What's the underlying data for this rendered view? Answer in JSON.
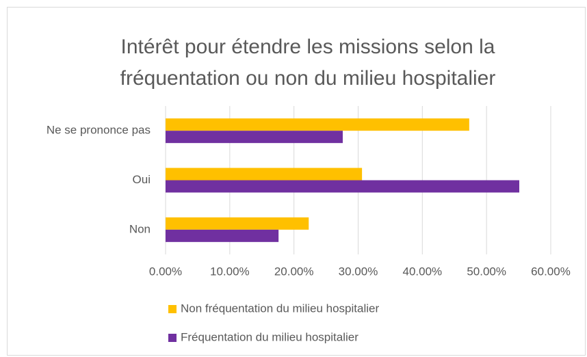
{
  "chart_data": {
    "type": "bar",
    "orientation": "horizontal",
    "title": "Intérêt pour étendre les missions selon la fréquentation ou non du milieu hospitalier",
    "categories": [
      "Ne se prononce pas",
      "Oui",
      "Non"
    ],
    "series": [
      {
        "name": "Non fréquentation du milieu hospitalier",
        "color": "#ffc000",
        "values": [
          47.3,
          30.6,
          22.3
        ]
      },
      {
        "name": "Fréquentation du milieu hospitalier",
        "color": "#7030a0",
        "values": [
          27.6,
          55.1,
          17.6
        ]
      }
    ],
    "xlim": [
      0,
      60
    ],
    "xticks": [
      {
        "value": 0,
        "label": "0.00%"
      },
      {
        "value": 10,
        "label": "10.00%"
      },
      {
        "value": 20,
        "label": "20.00%"
      },
      {
        "value": 30,
        "label": "30.00%"
      },
      {
        "value": 40,
        "label": "40.00%"
      },
      {
        "value": 50,
        "label": "50.00%"
      },
      {
        "value": 60,
        "label": "60.00%"
      }
    ],
    "grid": true
  }
}
